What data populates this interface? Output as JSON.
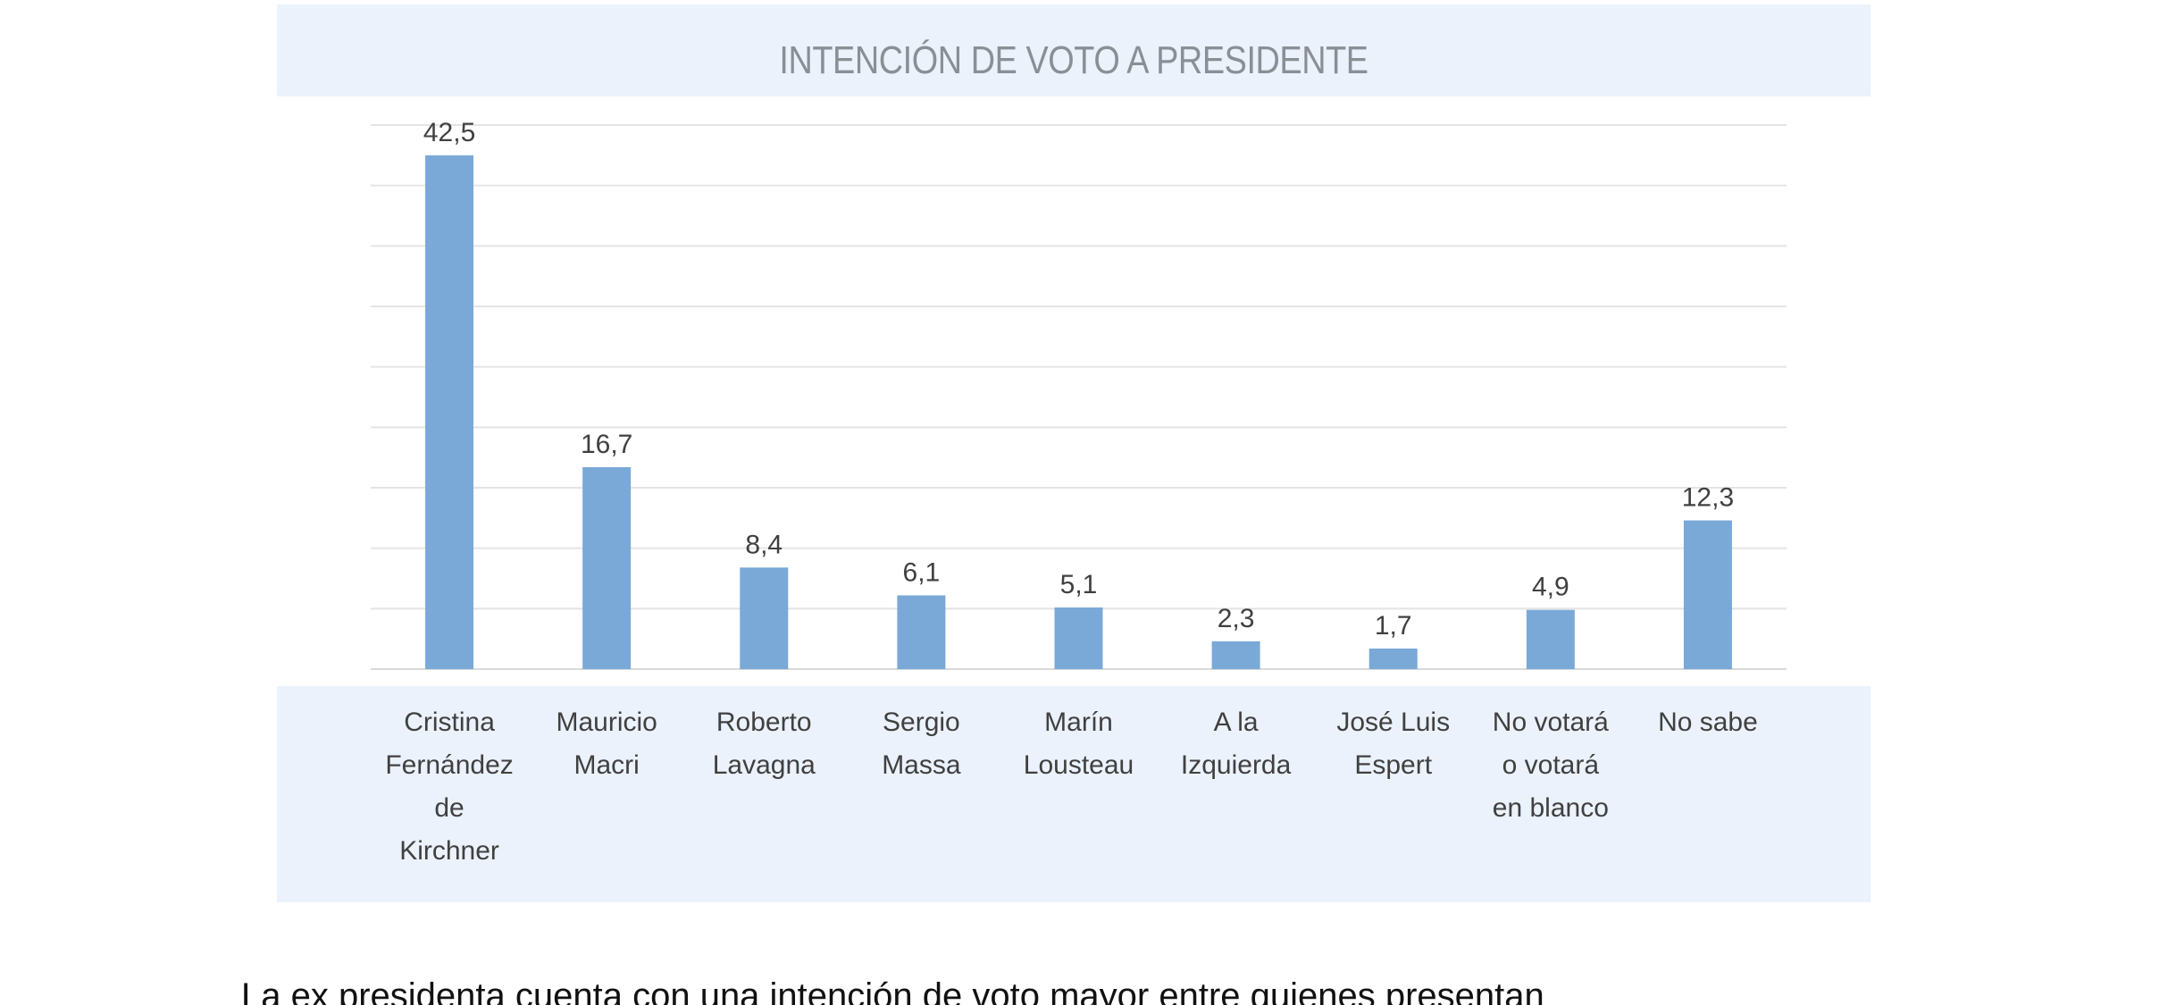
{
  "chart_data": {
    "type": "bar",
    "title": "INTENCIÓN DE VOTO A PRESIDENTE",
    "categories": [
      "Cristina\nFernández\nde\nKirchner",
      "Mauricio\nMacri",
      "Roberto\nLavagna",
      "Sergio\nMassa",
      "Marín\nLousteau",
      "A la\nIzquierda",
      "José Luis\nEspert",
      "No votará\no votará\nen blanco",
      "No sabe"
    ],
    "values": [
      42.5,
      16.7,
      8.4,
      6.1,
      5.1,
      2.3,
      1.7,
      4.9,
      12.3
    ],
    "data_labels": [
      "42,5",
      "16,7",
      "8,4",
      "6,1",
      "5,1",
      "2,3",
      "1,7",
      "4,9",
      "12,3"
    ],
    "ylim": [
      0,
      45
    ],
    "y_gridline_step": 5,
    "ytick_labels_shown": false,
    "grid": true,
    "legend": "none",
    "colors": {
      "bar": "#7aa9d8",
      "panel_band": "#ebf2fb",
      "title_text": "#8a8f96",
      "label_text": "#404040"
    }
  },
  "body_text": "La ex presidenta cuenta con una intención de voto mayor entre quienes presentan"
}
